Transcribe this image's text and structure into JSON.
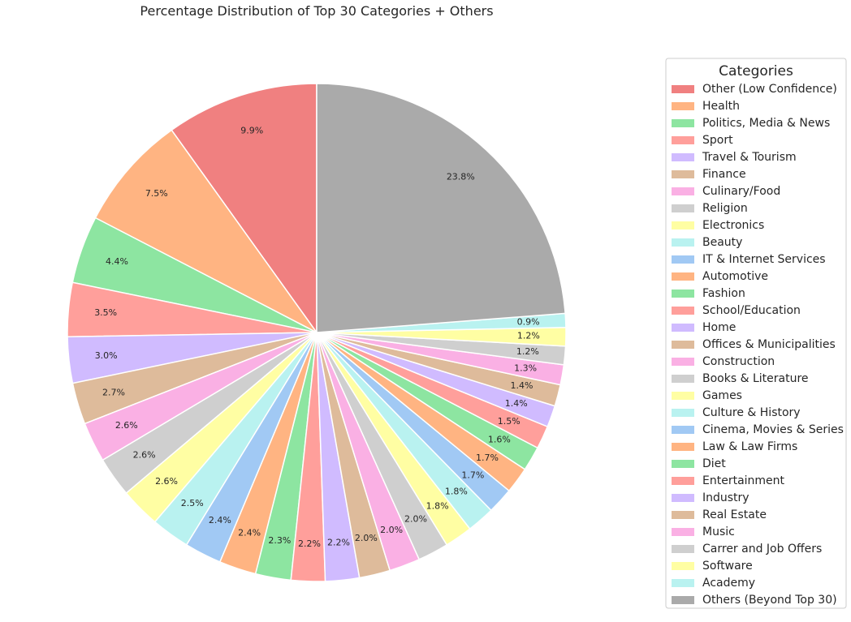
{
  "chart_data": {
    "type": "pie",
    "title": "Percentage Distribution of Top 30 Categories + Others",
    "legend_title": "Categories",
    "legend_position": "right",
    "start_angle_deg": 90,
    "direction": "counterclockwise",
    "slices": [
      {
        "label": "Other (Low Confidence)",
        "value": 9.9,
        "pct_label": "9.9%",
        "color": "#f08080"
      },
      {
        "label": "Health",
        "value": 7.5,
        "pct_label": "7.5%",
        "color": "#ffb482"
      },
      {
        "label": "Politics, Media & News",
        "value": 4.4,
        "pct_label": "4.4%",
        "color": "#8de5a1"
      },
      {
        "label": "Sport",
        "value": 3.5,
        "pct_label": "3.5%",
        "color": "#ff9f9b"
      },
      {
        "label": "Travel & Tourism",
        "value": 3.0,
        "pct_label": "3.0%",
        "color": "#d0bbff"
      },
      {
        "label": "Finance",
        "value": 2.7,
        "pct_label": "2.7%",
        "color": "#debb9b"
      },
      {
        "label": "Culinary/Food",
        "value": 2.6,
        "pct_label": "2.6%",
        "color": "#fab0e4"
      },
      {
        "label": "Religion",
        "value": 2.6,
        "pct_label": "2.6%",
        "color": "#cfcfcf"
      },
      {
        "label": "Electronics",
        "value": 2.6,
        "pct_label": "2.6%",
        "color": "#fffea3"
      },
      {
        "label": "Beauty",
        "value": 2.5,
        "pct_label": "2.5%",
        "color": "#b9f2f0"
      },
      {
        "label": "IT & Internet Services",
        "value": 2.4,
        "pct_label": "2.4%",
        "color": "#a1c9f4"
      },
      {
        "label": "Automotive",
        "value": 2.4,
        "pct_label": "2.4%",
        "color": "#ffb482"
      },
      {
        "label": "Fashion",
        "value": 2.3,
        "pct_label": "2.3%",
        "color": "#8de5a1"
      },
      {
        "label": "School/Education",
        "value": 2.2,
        "pct_label": "2.2%",
        "color": "#ff9f9b"
      },
      {
        "label": "Home",
        "value": 2.2,
        "pct_label": "2.2%",
        "color": "#d0bbff"
      },
      {
        "label": "Offices & Municipalities",
        "value": 2.0,
        "pct_label": "2.0%",
        "color": "#debb9b"
      },
      {
        "label": "Construction",
        "value": 2.0,
        "pct_label": "2.0%",
        "color": "#fab0e4"
      },
      {
        "label": "Books & Literature",
        "value": 2.0,
        "pct_label": "2.0%",
        "color": "#cfcfcf"
      },
      {
        "label": "Games",
        "value": 1.8,
        "pct_label": "1.8%",
        "color": "#fffea3"
      },
      {
        "label": "Culture & History",
        "value": 1.8,
        "pct_label": "1.8%",
        "color": "#b9f2f0"
      },
      {
        "label": "Cinema, Movies & Series",
        "value": 1.7,
        "pct_label": "1.7%",
        "color": "#a1c9f4"
      },
      {
        "label": "Law & Law Firms",
        "value": 1.7,
        "pct_label": "1.7%",
        "color": "#ffb482"
      },
      {
        "label": "Diet",
        "value": 1.6,
        "pct_label": "1.6%",
        "color": "#8de5a1"
      },
      {
        "label": "Entertainment",
        "value": 1.5,
        "pct_label": "1.5%",
        "color": "#ff9f9b"
      },
      {
        "label": "Industry",
        "value": 1.4,
        "pct_label": "1.4%",
        "color": "#d0bbff"
      },
      {
        "label": "Real Estate",
        "value": 1.4,
        "pct_label": "1.4%",
        "color": "#debb9b"
      },
      {
        "label": "Music",
        "value": 1.3,
        "pct_label": "1.3%",
        "color": "#fab0e4"
      },
      {
        "label": "Carrer and Job Offers",
        "value": 1.2,
        "pct_label": "1.2%",
        "color": "#cfcfcf"
      },
      {
        "label": "Software",
        "value": 1.2,
        "pct_label": "1.2%",
        "color": "#fffea3"
      },
      {
        "label": "Academy",
        "value": 0.9,
        "pct_label": "0.9%",
        "color": "#b9f2f0"
      },
      {
        "label": "Others (Beyond Top 30)",
        "value": 23.8,
        "pct_label": "23.8%",
        "color": "#aaaaaa"
      }
    ]
  }
}
